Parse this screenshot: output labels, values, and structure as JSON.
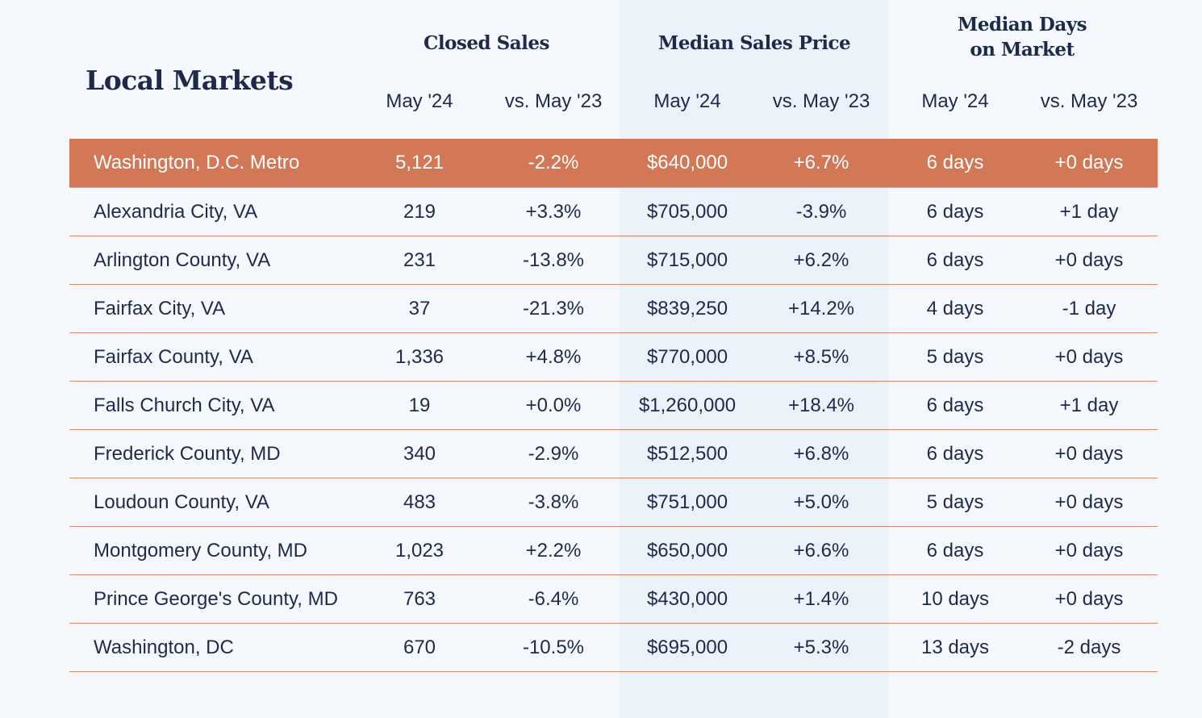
{
  "title": "Local Markets",
  "groups": [
    "Closed Sales",
    "Median Sales Price",
    "Median Days",
    "on Market"
  ],
  "subheaders": [
    "May '24",
    "vs. May '23",
    "May '24",
    "vs. May '23",
    "May '24",
    "vs. May '23"
  ],
  "rows": [
    [
      "Washington, D.C. Metro",
      "5,121",
      "-2.2%",
      "$640,000",
      "+6.7%",
      "6 days",
      "+0 days"
    ],
    [
      "Alexandria City, VA",
      "219",
      "+3.3%",
      "$705,000",
      "-3.9%",
      "6 days",
      "+1 day"
    ],
    [
      "Arlington County, VA",
      "231",
      "-13.8%",
      "$715,000",
      "+6.2%",
      "6 days",
      "+0 days"
    ],
    [
      "Fairfax City, VA",
      "37",
      "-21.3%",
      "$839,250",
      "+14.2%",
      "4 days",
      "-1 day"
    ],
    [
      "Fairfax County, VA",
      "1,336",
      "+4.8%",
      "$770,000",
      "+8.5%",
      "5 days",
      "+0 days"
    ],
    [
      "Falls Church City, VA",
      "19",
      "+0.0%",
      "$1,260,000",
      "+18.4%",
      "6 days",
      "+1 day"
    ],
    [
      "Frederick County, MD",
      "340",
      "-2.9%",
      "$512,500",
      "+6.8%",
      "6 days",
      "+0 days"
    ],
    [
      "Loudoun County, VA",
      "483",
      "-3.8%",
      "$751,000",
      "+5.0%",
      "5 days",
      "+0 days"
    ],
    [
      "Montgomery County, MD",
      "1,023",
      "+2.2%",
      "$650,000",
      "+6.6%",
      "6 days",
      "+0 days"
    ],
    [
      "Prince George's County, MD",
      "763",
      "-6.4%",
      "$430,000",
      "+1.4%",
      "10 days",
      "+0 days"
    ],
    [
      "Washington,  DC",
      "670",
      "-10.5%",
      "$695,000",
      "+5.3%",
      "13 days",
      "-2 days"
    ]
  ],
  "colors": {
    "highlight": "#d37857",
    "text": "#1f2a4b",
    "rule": "#d88a6a"
  }
}
